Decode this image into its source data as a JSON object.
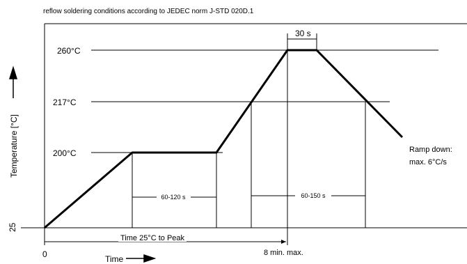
{
  "title": "reflow soldering conditions according to JEDEC norm J-STD 020D.1",
  "axes": {
    "y_label": "Temperature [°C]",
    "x_label": "Time",
    "y_base_label": "25",
    "x_origin_label": "0",
    "x_max_label": "8 min. max."
  },
  "temperature_levels": {
    "t260": "260°C",
    "t217": "217°C",
    "t200": "200°C"
  },
  "annotations": {
    "peak_time": "30 s",
    "ramp_down": [
      "Ramp down:",
      "max. 6°C/s"
    ],
    "soak_duration": "60-120 s",
    "liquidus_duration": "60-150 s",
    "time_to_peak": "Time 25°C to Peak"
  },
  "colors": {
    "line": "#000000",
    "background": "#ffffff"
  }
}
